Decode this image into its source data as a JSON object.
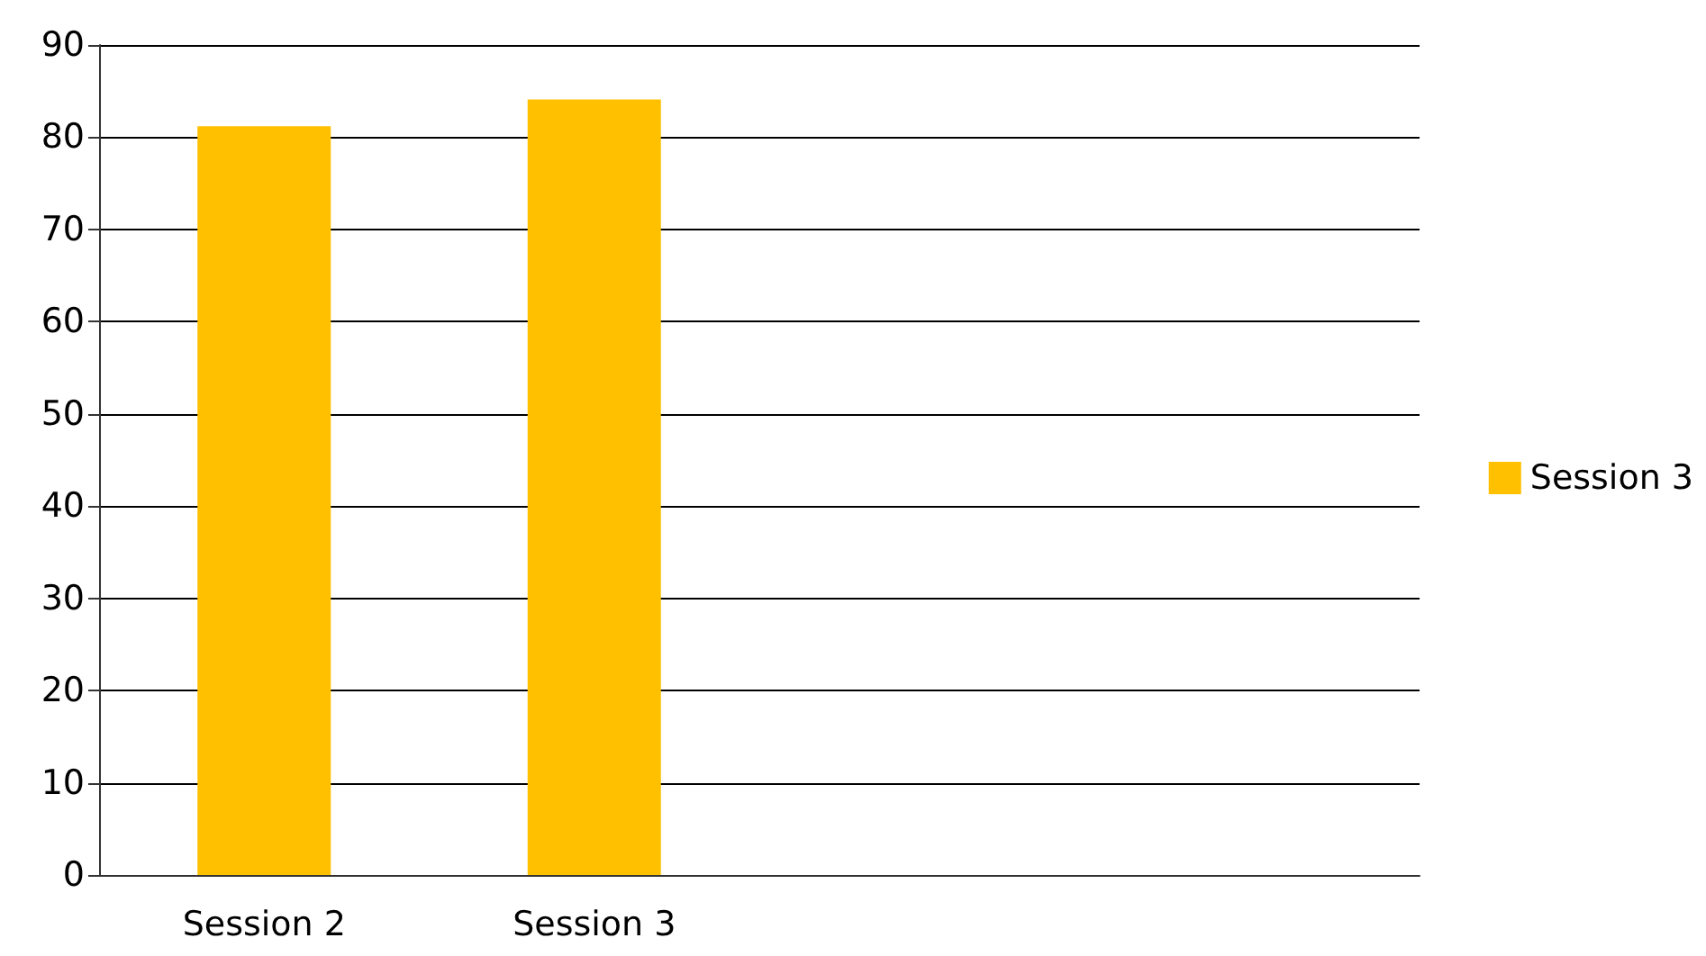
{
  "chart_data": {
    "type": "bar",
    "categories": [
      "Session 2",
      "Session 3",
      null,
      null
    ],
    "series": [
      {
        "name": "Session 3",
        "color": "#ffc000",
        "values": [
          81.2,
          84.1,
          null,
          null
        ]
      }
    ],
    "ylim": [
      0,
      90
    ],
    "yticks": [
      0,
      10,
      20,
      30,
      40,
      50,
      60,
      70,
      80,
      90
    ],
    "grid": "y",
    "legend": "right"
  }
}
